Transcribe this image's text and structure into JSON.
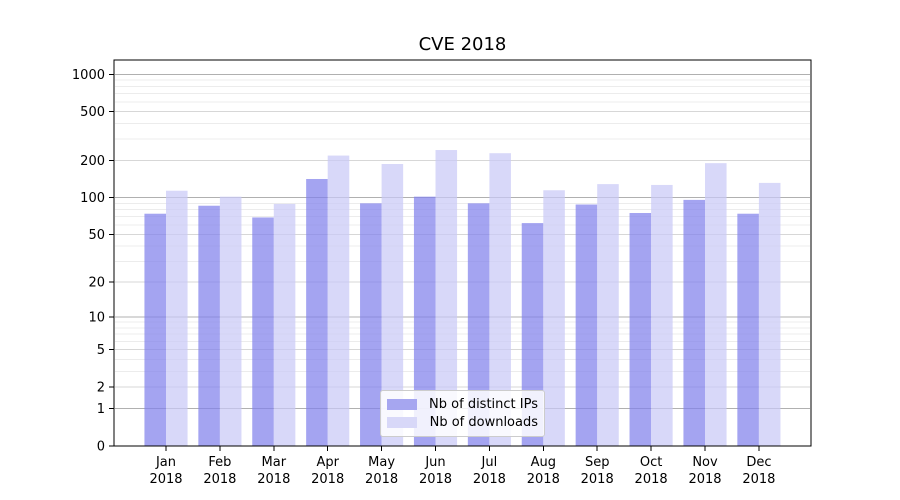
{
  "chart_data": {
    "type": "bar",
    "title": "CVE 2018",
    "xlabel": "",
    "ylabel": "",
    "scale": "log1p",
    "categories": [
      "Jan",
      "Feb",
      "Mar",
      "Apr",
      "May",
      "Jun",
      "Jul",
      "Aug",
      "Sep",
      "Oct",
      "Nov",
      "Dec"
    ],
    "year": "2018",
    "series": [
      {
        "key": "distinct-ips",
        "name": "Nb of distinct IPs",
        "color": "rgba(129,129,236,0.72)",
        "legend_color": "#a6a6f0",
        "values": [
          74,
          86,
          69,
          142,
          90,
          102,
          90,
          62,
          88,
          75,
          96,
          74
        ]
      },
      {
        "key": "downloads",
        "name": "Nb of downloads",
        "color": "rgba(201,201,246,0.72)",
        "legend_color": "#d8d8f8",
        "values": [
          114,
          102,
          89,
          220,
          188,
          244,
          230,
          115,
          129,
          127,
          191,
          132
        ]
      }
    ],
    "y_ticks": [
      0,
      1,
      2,
      5,
      10,
      20,
      50,
      100,
      200,
      500,
      1000
    ],
    "ylim": [
      0,
      1300
    ],
    "grid": {
      "major": [
        1,
        10,
        100,
        1000
      ],
      "labeled_minor": [
        2,
        5,
        20,
        50,
        200,
        500
      ],
      "minor": [
        3,
        4,
        6,
        7,
        8,
        9,
        30,
        40,
        60,
        70,
        80,
        90,
        300,
        400,
        600,
        700,
        800,
        900
      ]
    },
    "legend_position": "lower center",
    "colors": {
      "grid_major": "#b0b0b0",
      "grid_labeled_minor": "#d7d7d7",
      "grid_minor": "#ececec",
      "axis": "#000000",
      "text": "#000000",
      "background": "#ffffff"
    }
  }
}
